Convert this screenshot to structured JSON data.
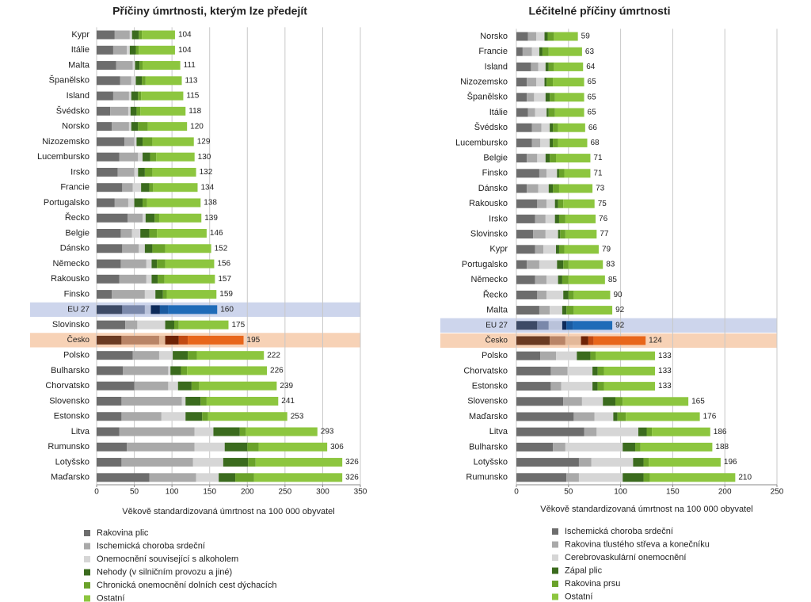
{
  "chart_data": [
    {
      "type": "bar",
      "orientation": "horizontal",
      "stacked": true,
      "title": "Příčiny úmrtnosti, kterým lze předejít",
      "categories": [
        "Kypr",
        "Itálie",
        "Malta",
        "Španělsko",
        "Island",
        "Švédsko",
        "Norsko",
        "Nizozemsko",
        "Lucembursko",
        "Irsko",
        "Francie",
        "Portugalsko",
        "Řecko",
        "Belgie",
        "Dánsko",
        "Německo",
        "Rakousko",
        "Finsko",
        "EU 27",
        "Slovinsko",
        "Česko",
        "Polsko",
        "Bulharsko",
        "Chorvatsko",
        "Slovensko",
        "Estonsko",
        "Litva",
        "Rumunsko",
        "Lotyšsko",
        "Maďarsko"
      ],
      "series": [
        {
          "name": "Rakovina plic",
          "color": "#6d6d6d",
          "values": [
            24,
            22,
            26,
            31,
            22,
            18,
            20,
            37,
            30,
            28,
            34,
            24,
            41,
            32,
            34,
            32,
            30,
            20,
            34,
            38,
            33,
            48,
            35,
            50,
            33,
            33,
            30,
            40,
            33,
            70
          ]
        },
        {
          "name": "Ischemická choroba srdeční",
          "color": "#a9a9a9",
          "values": [
            20,
            18,
            22,
            15,
            21,
            24,
            23,
            13,
            25,
            22,
            14,
            18,
            20,
            15,
            22,
            34,
            36,
            44,
            30,
            16,
            50,
            35,
            60,
            45,
            80,
            53,
            100,
            90,
            95,
            62
          ]
        },
        {
          "name": "Onemocnění související s alkoholem",
          "color": "#d6d6d6",
          "values": [
            3,
            4,
            3,
            6,
            3,
            3,
            3,
            3,
            6,
            5,
            11,
            8,
            4,
            11,
            8,
            7,
            7,
            14,
            8,
            37,
            8,
            18,
            3,
            13,
            5,
            32,
            25,
            40,
            40,
            30
          ]
        },
        {
          "name": "Nehody (v silničním provozu a jiné)",
          "color": "#3b6b1e",
          "values": [
            9,
            8,
            6,
            8,
            9,
            8,
            9,
            8,
            10,
            9,
            11,
            11,
            12,
            12,
            10,
            7,
            8,
            10,
            12,
            12,
            18,
            20,
            14,
            18,
            20,
            22,
            35,
            30,
            33,
            22
          ]
        },
        {
          "name": "Chronická onemocnění dolních cest dýchacích",
          "color": "#6aa22a",
          "values": [
            4,
            4,
            4,
            5,
            4,
            5,
            13,
            13,
            8,
            10,
            5,
            6,
            6,
            10,
            17,
            11,
            9,
            5,
            11,
            6,
            12,
            12,
            8,
            10,
            8,
            8,
            8,
            15,
            10,
            25
          ]
        },
        {
          "name": "Ostatní",
          "color": "#8dc63f",
          "values": [
            44,
            48,
            50,
            48,
            56,
            60,
            52,
            55,
            51,
            58,
            59,
            71,
            56,
            66,
            61,
            65,
            67,
            66,
            65,
            66,
            74,
            89,
            106,
            103,
            95,
            105,
            95,
            91,
            115,
            117
          ]
        }
      ],
      "totals": [
        104,
        104,
        111,
        113,
        115,
        118,
        120,
        129,
        130,
        132,
        134,
        138,
        139,
        146,
        152,
        156,
        157,
        159,
        160,
        175,
        195,
        222,
        226,
        239,
        241,
        253,
        293,
        306,
        326,
        326
      ],
      "xlim": [
        0,
        350
      ],
      "xticks": [
        0,
        50,
        100,
        150,
        200,
        250,
        300,
        350
      ],
      "xlabel": "Věkově standardizovaná úmrtnost na 100 000 obyvatel",
      "grid": true,
      "highlights": [
        {
          "category": "EU 27",
          "band_color": "#cdd5ec",
          "colors": [
            "#3d4a66",
            "#7a88aa",
            "#b9c2da",
            "#0d2a5a",
            "#1a5aa0",
            "#1f6bb8"
          ]
        },
        {
          "category": "Česko",
          "band_color": "#f7d2b6",
          "colors": [
            "#6b3b22",
            "#b98466",
            "#e3b899",
            "#6e2306",
            "#c24a12",
            "#e8661a"
          ]
        }
      ]
    },
    {
      "type": "bar",
      "orientation": "horizontal",
      "stacked": true,
      "title": "Léčitelné příčiny úmrtnosti",
      "categories": [
        "Norsko",
        "Francie",
        "Island",
        "Nizozemsko",
        "Španělsko",
        "Itálie",
        "Švédsko",
        "Lucembursko",
        "Belgie",
        "Finsko",
        "Dánsko",
        "Rakousko",
        "Irsko",
        "Slovinsko",
        "Kypr",
        "Portugalsko",
        "Německo",
        "Řecko",
        "Malta",
        "EU 27",
        "Česko",
        "Polsko",
        "Chorvatsko",
        "Estonsko",
        "Slovensko",
        "Maďarsko",
        "Litva",
        "Bulharsko",
        "Lotyšsko",
        "Rumunsko"
      ],
      "series": [
        {
          "name": "Ischemická choroba srdeční",
          "color": "#6d6d6d",
          "values": [
            11,
            6,
            14,
            10,
            10,
            11,
            15,
            15,
            10,
            22,
            10,
            20,
            18,
            16,
            18,
            10,
            18,
            20,
            22,
            20,
            32,
            23,
            33,
            33,
            45,
            55,
            65,
            35,
            60,
            48
          ]
        },
        {
          "name": "Rakovina tlustého střeva a konečníku",
          "color": "#a9a9a9",
          "values": [
            8,
            9,
            7,
            9,
            7,
            7,
            9,
            8,
            10,
            7,
            11,
            9,
            10,
            12,
            8,
            12,
            11,
            9,
            10,
            11,
            15,
            15,
            16,
            10,
            18,
            20,
            12,
            12,
            12,
            12
          ]
        },
        {
          "name": "Cerebrovaskulární onemocnění",
          "color": "#d6d6d6",
          "values": [
            8,
            7,
            7,
            8,
            11,
            11,
            8,
            9,
            8,
            10,
            10,
            8,
            9,
            12,
            12,
            17,
            11,
            16,
            12,
            13,
            15,
            20,
            24,
            30,
            20,
            18,
            40,
            55,
            40,
            42
          ]
        },
        {
          "name": "Zápal plic",
          "color": "#3b6b1e",
          "values": [
            3,
            3,
            3,
            2,
            4,
            2,
            3,
            3,
            4,
            2,
            4,
            3,
            4,
            2,
            3,
            6,
            4,
            5,
            4,
            4,
            7,
            13,
            5,
            5,
            12,
            4,
            8,
            12,
            10,
            20
          ]
        },
        {
          "name": "Rakovina prsu",
          "color": "#6aa22a",
          "values": [
            6,
            6,
            5,
            6,
            5,
            6,
            5,
            5,
            6,
            5,
            6,
            5,
            6,
            5,
            5,
            5,
            6,
            5,
            7,
            6,
            5,
            5,
            6,
            6,
            7,
            8,
            5,
            5,
            5,
            6
          ]
        },
        {
          "name": "Ostatní",
          "color": "#8dc63f",
          "values": [
            23,
            32,
            28,
            30,
            28,
            28,
            26,
            28,
            33,
            25,
            32,
            30,
            29,
            30,
            33,
            33,
            35,
            35,
            37,
            38,
            50,
            57,
            49,
            49,
            63,
            71,
            56,
            69,
            69,
            82
          ]
        }
      ],
      "totals": [
        59,
        63,
        64,
        65,
        65,
        65,
        66,
        68,
        71,
        71,
        73,
        75,
        76,
        77,
        79,
        83,
        85,
        90,
        92,
        92,
        124,
        133,
        133,
        133,
        165,
        176,
        186,
        188,
        196,
        210
      ],
      "xlim": [
        0,
        250
      ],
      "xticks": [
        0,
        50,
        100,
        150,
        200,
        250
      ],
      "xlabel": "Věkově standardizovaná úmrtnost na 100 000 obyvatel",
      "grid": true,
      "highlights": [
        {
          "category": "EU 27",
          "band_color": "#cdd5ec",
          "colors": [
            "#3d4a66",
            "#7a88aa",
            "#b9c2da",
            "#0d2a5a",
            "#1a5aa0",
            "#1f6bb8"
          ]
        },
        {
          "category": "Česko",
          "band_color": "#f7d2b6",
          "colors": [
            "#6b3b22",
            "#b98466",
            "#e3b899",
            "#6e2306",
            "#c24a12",
            "#e8661a"
          ]
        }
      ]
    }
  ]
}
